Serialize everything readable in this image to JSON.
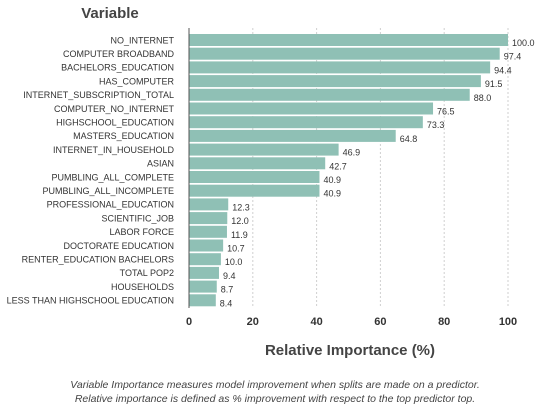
{
  "chart_data": {
    "type": "bar",
    "orientation": "horizontal",
    "title": "Variable",
    "xlabel": "Relative Importance (%)",
    "ylabel": "",
    "xlim": [
      0,
      100
    ],
    "xticks": [
      0,
      20,
      40,
      60,
      80,
      100
    ],
    "grid": "vertical dashed",
    "bar_color": "#8fc0b5",
    "categories": [
      "NO_INTERNET",
      "COMPUTER BROADBAND",
      "BACHELORS_EDUCATION",
      "HAS_COMPUTER",
      "INTERNET_SUBSCRIPTION_TOTAL",
      "COMPUTER_NO_INTERNET",
      "HIGHSCHOOL_EDUCATION",
      "MASTERS_EDUCATION",
      "INTERNET_IN_HOUSEHOLD",
      "ASIAN",
      "PUMBLING_ALL_COMPLETE",
      "PUMBLING_ALL_INCOMPLETE",
      "PROFESSIONAL_EDUCATION",
      "SCIENTIFIC_JOB",
      "LABOR FORCE",
      "DOCTORATE EDUCATION",
      "RENTER_EDUCATION BACHELORS",
      "TOTAL POP2",
      "HOUSEHOLDS",
      "LESS THAN HIGHSCHOOL EDUCATION"
    ],
    "values": [
      100.0,
      97.4,
      94.4,
      91.5,
      88.0,
      76.5,
      73.3,
      64.8,
      46.9,
      42.7,
      40.9,
      40.9,
      12.3,
      12.0,
      11.9,
      10.7,
      10.0,
      9.4,
      8.7,
      8.4
    ],
    "value_labels": [
      "100.0",
      "97.4",
      "94.4",
      "91.5",
      "88.0",
      "76.5",
      "73.3",
      "64.8",
      "46.9",
      "42.7",
      "40.9",
      "40.9",
      "12.3",
      "12.0",
      "11.9",
      "10.7",
      "10.0",
      "9.4",
      "8.7",
      "8.4"
    ]
  },
  "caption": {
    "line1": "Variable Importance measures model improvement when splits are made on a predictor.",
    "line2": "Relative importance is defined as % improvement with respect to the top predictor top."
  }
}
